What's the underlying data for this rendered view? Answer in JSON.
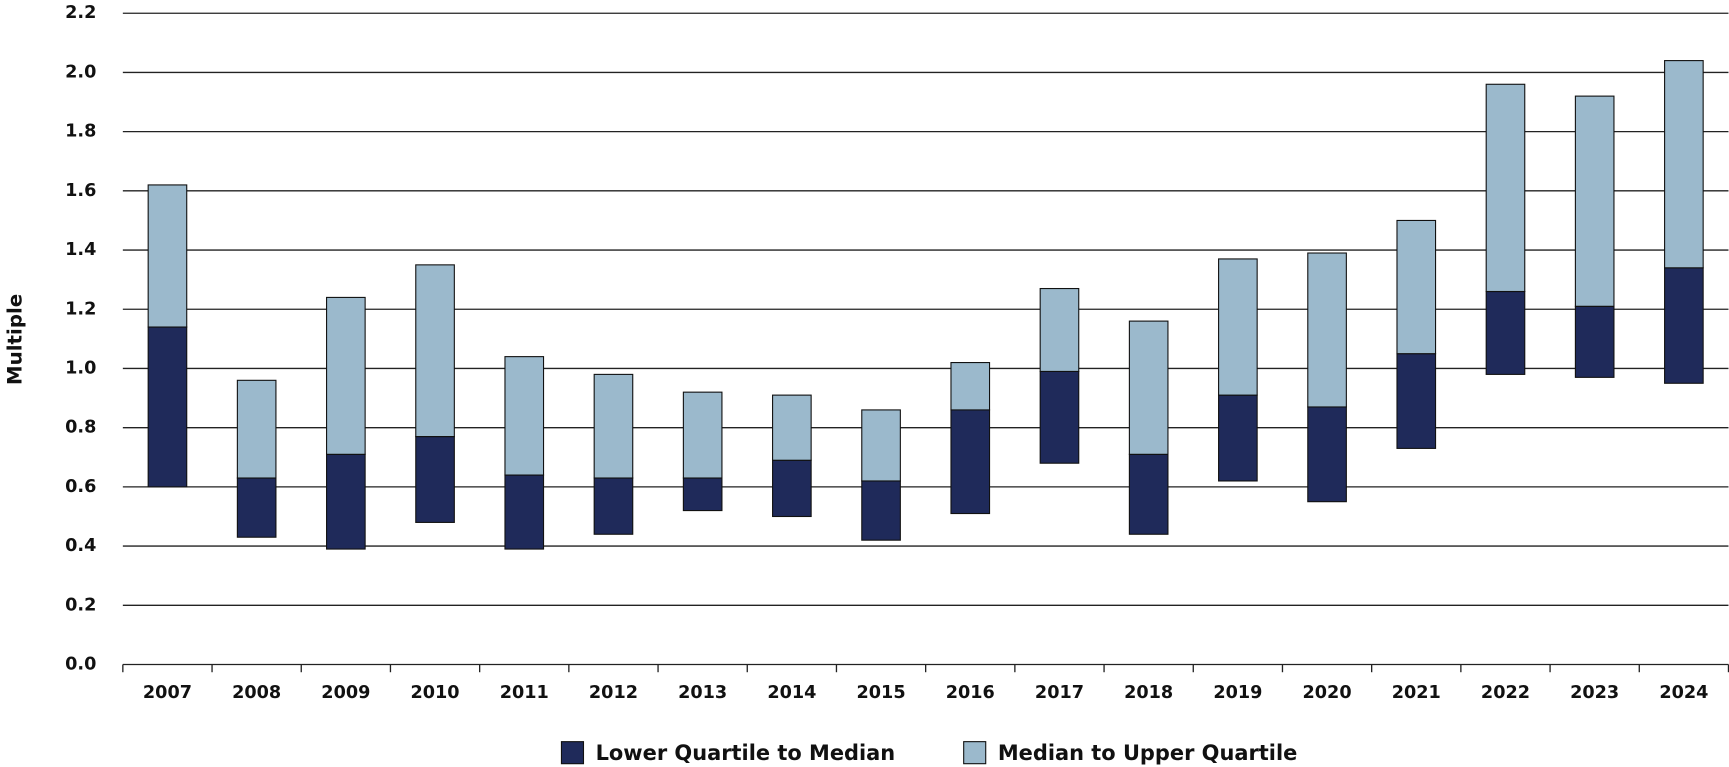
{
  "chart_data": {
    "type": "floating-bar",
    "y_label": "Multiple",
    "categories": [
      "2007",
      "2008",
      "2009",
      "2010",
      "2011",
      "2012",
      "2013",
      "2014",
      "2015",
      "2016",
      "2017",
      "2018",
      "2019",
      "2020",
      "2021",
      "2022",
      "2023",
      "2024"
    ],
    "lower_quartile": [
      0.6,
      0.43,
      0.39,
      0.48,
      0.39,
      0.44,
      0.52,
      0.5,
      0.42,
      0.51,
      0.68,
      0.44,
      0.62,
      0.55,
      0.73,
      0.98,
      0.97,
      0.95
    ],
    "series": [
      {
        "name": "Lower Quartile to Median",
        "color": "#1f2a5a",
        "values": [
          1.14,
          0.63,
          0.71,
          0.77,
          0.64,
          0.63,
          0.63,
          0.69,
          0.62,
          0.86,
          0.99,
          0.71,
          0.91,
          0.87,
          1.05,
          1.26,
          1.21,
          1.34
        ]
      },
      {
        "name": "Median to Upper Quartile",
        "color": "#9bb9cc",
        "values": [
          1.62,
          0.96,
          1.24,
          1.35,
          1.04,
          0.98,
          0.92,
          0.91,
          0.86,
          1.02,
          1.27,
          1.16,
          1.37,
          1.39,
          1.5,
          1.96,
          1.92,
          2.04
        ]
      }
    ],
    "ylim": [
      0,
      2.2
    ],
    "yticks": [
      {
        "value": 0,
        "label": "0.0"
      },
      {
        "value": 0.2,
        "label": "0.2"
      },
      {
        "value": 0.4,
        "label": "0.4"
      },
      {
        "value": 0.6,
        "label": "0.6"
      },
      {
        "value": 0.8,
        "label": "0.8"
      },
      {
        "value": 1,
        "label": "1.0"
      },
      {
        "value": 1.2,
        "label": "1.2"
      },
      {
        "value": 1.4,
        "label": "1.4"
      },
      {
        "value": 1.6,
        "label": "1.6"
      },
      {
        "value": 1.8,
        "label": "1.8"
      },
      {
        "value": 2,
        "label": "2.0"
      },
      {
        "value": 2.2,
        "label": "2.2"
      }
    ],
    "grid": true
  }
}
